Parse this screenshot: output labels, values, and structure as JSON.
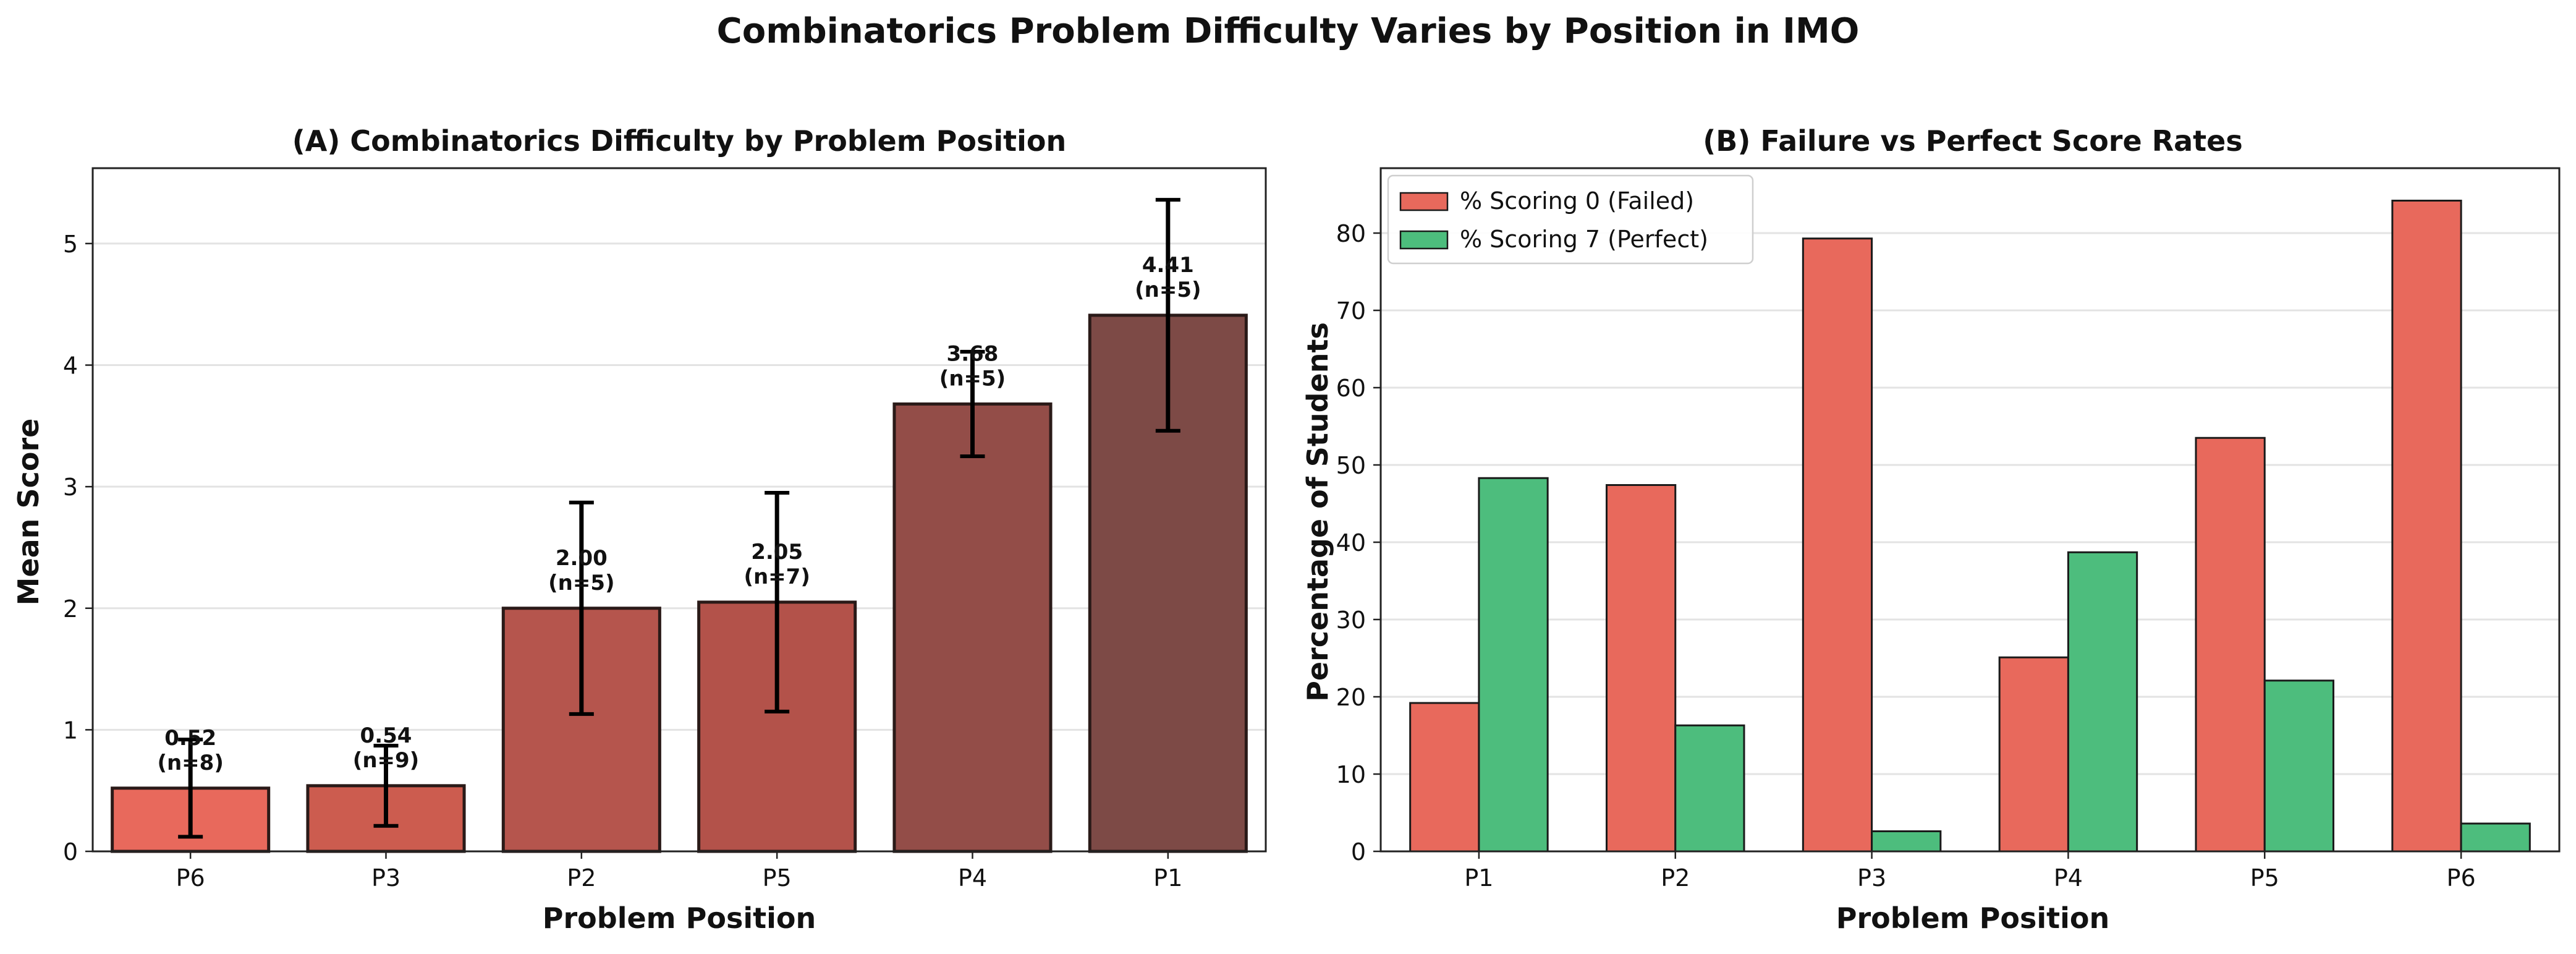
{
  "figure": {
    "title": "Combinatorics Problem Difficulty Varies by Position in IMO"
  },
  "chart_data": [
    {
      "type": "bar",
      "title": "(A) Combinatorics Difficulty by Problem Position",
      "xlabel": "Problem Position",
      "ylabel": "Mean Score",
      "categories": [
        "P6",
        "P3",
        "P2",
        "P5",
        "P4",
        "P1"
      ],
      "values": [
        0.52,
        0.54,
        2.0,
        2.05,
        3.68,
        4.41
      ],
      "errors": [
        0.4,
        0.33,
        0.87,
        0.9,
        0.43,
        0.95
      ],
      "n": [
        8,
        9,
        5,
        7,
        5,
        5
      ],
      "value_labels": [
        "0.52",
        "0.54",
        "2.00",
        "2.05",
        "3.68",
        "4.41"
      ],
      "n_labels": [
        "(n=8)",
        "(n=9)",
        "(n=5)",
        "(n=7)",
        "(n=5)",
        "(n=5)"
      ],
      "bar_colors": [
        "#e8695c",
        "#cc5c4f",
        "#b5554d",
        "#b3524a",
        "#934d48",
        "#7d4a46"
      ],
      "ylim": [
        0,
        5.62
      ],
      "yticks": [
        0,
        1,
        2,
        3,
        4,
        5
      ],
      "grid": "horizontal"
    },
    {
      "type": "bar",
      "title": "(B) Failure vs Perfect Score Rates",
      "xlabel": "Problem Position",
      "ylabel": "Percentage of Students",
      "categories": [
        "P1",
        "P2",
        "P3",
        "P4",
        "P5",
        "P6"
      ],
      "series": [
        {
          "name": "% Scoring 0 (Failed)",
          "color": "#e8695c",
          "values": [
            19.2,
            47.4,
            79.3,
            25.1,
            53.5,
            84.2
          ]
        },
        {
          "name": "% Scoring 7 (Perfect)",
          "color": "#4dbd7d",
          "values": [
            48.3,
            16.3,
            2.6,
            38.7,
            22.1,
            3.6
          ]
        }
      ],
      "ylim": [
        0,
        88.4
      ],
      "yticks": [
        0,
        10,
        20,
        30,
        40,
        50,
        60,
        70,
        80
      ],
      "legend": "top-left",
      "grid": "horizontal"
    }
  ]
}
